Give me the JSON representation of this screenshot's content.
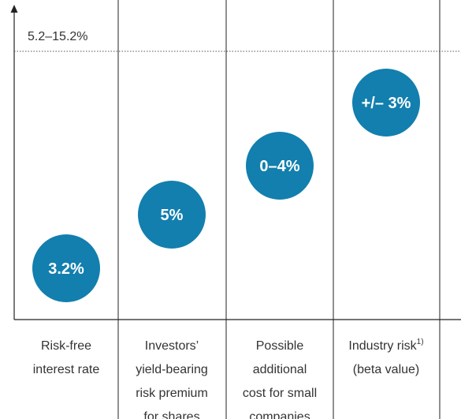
{
  "axis_label": "5.2–15.2%",
  "columns": [
    {
      "circle": "3.2%",
      "label": [
        "Risk-free",
        "interest rate"
      ]
    },
    {
      "circle": "5%",
      "label": [
        "Investors’",
        "yield-bearing",
        "risk premium",
        "for shares"
      ]
    },
    {
      "circle": "0–4%",
      "label": [
        "Possible",
        "additional",
        "cost for small",
        "companies"
      ]
    },
    {
      "circle": "+/– 3%",
      "label": [
        "Industry risk",
        "(beta value)"
      ],
      "footnote": "1)"
    }
  ]
}
